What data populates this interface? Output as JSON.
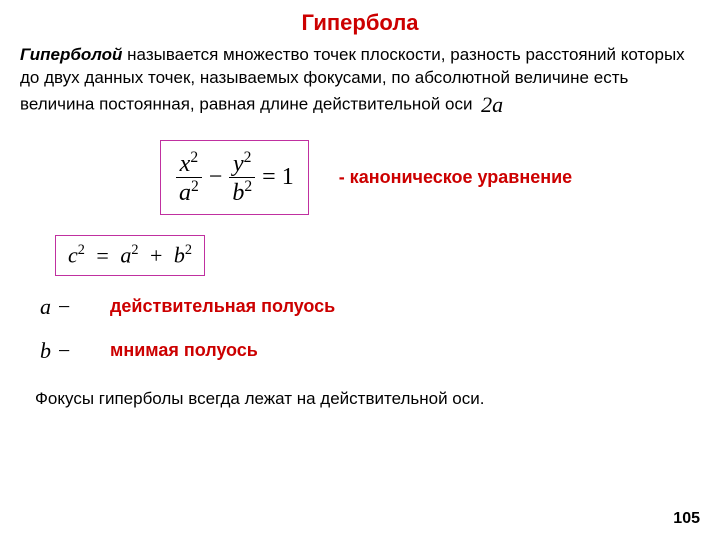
{
  "title": "Гипербола",
  "definition_term": "Гиперболой",
  "definition_text": "  называется множество точек плоскости, разность расстояний которых до двух данных точек, называемых фокусами, по абсолютной величине есть величина постоянная, равная длине  действительной оси ",
  "twoa": "2a",
  "canonical_label": "- каноническое уравнение",
  "eq_frac1_num": "x",
  "eq_frac1_den": "a",
  "eq_frac2_num": "y",
  "eq_frac2_den": "b",
  "eq_rhs": "1",
  "c_eq": "c",
  "a_eq": "a",
  "b_eq": "b",
  "plus": "+",
  "equals": "=",
  "minus_sign": "−",
  "a_sym": "a −",
  "a_label": "действительная полуось",
  "b_sym": "b −",
  "b_label": "мнимая полуось",
  "footer": "Фокусы гиперболы всегда лежат на действительной оси.",
  "page": "105",
  "sq": "2"
}
